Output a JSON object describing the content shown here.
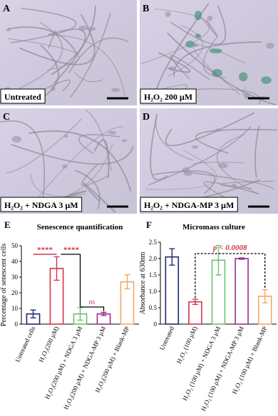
{
  "panels": [
    {
      "letter": "A",
      "caption": "Untreated"
    },
    {
      "letter": "B",
      "caption": "H₂O₂ 200 µM"
    },
    {
      "letter": "C",
      "caption": "H₂O₂ + NDGA 3 µM"
    },
    {
      "letter": "D",
      "caption": "H₂O₂ + NDGA-MP 3 µM"
    }
  ],
  "chart_data": [
    {
      "type": "bar",
      "panel_label": "E",
      "title": "Senescence quantification",
      "y_label": "Percentage of senescent cells",
      "categories": [
        "Untreated cells",
        "H₂O₂(200 µM)",
        "H₂O₂(200 µM) + NDGA 3 µM",
        "H₂O₂(200 µM) + NDGA-MP 3 µM",
        "H₂O₂(200 µM) + Blank-MP"
      ],
      "values": [
        6.5,
        35.5,
        6.5,
        6.5,
        27
      ],
      "errors": [
        2.5,
        7.5,
        4,
        1,
        4.5
      ],
      "colors": [
        "#1f2a6e",
        "#d0344a",
        "#6cc070",
        "#9b2f8c",
        "#f2a866"
      ],
      "ylim": [
        0,
        50
      ],
      "yticks": [
        0,
        10,
        20,
        30,
        40,
        50
      ],
      "annotations": [
        "****",
        "****",
        "ns"
      ]
    },
    {
      "type": "bar",
      "panel_label": "F",
      "title": "Micromass culture",
      "y_label": "Absorbance at 630nm",
      "categories": [
        "Untreated",
        "H₂O₂ (100 µM)",
        "H₂O₂ (100 µM) + NDGA 3 µM",
        "H₂O₂ (100 µM) + NDGA-MP 3 µM",
        "H₂O₂ (100 µM) + Blank-MP"
      ],
      "values": [
        2.05,
        0.68,
        1.95,
        2.0,
        0.85
      ],
      "errors": [
        0.25,
        0.08,
        0.45,
        0.02,
        0.2
      ],
      "colors": [
        "#1f2a6e",
        "#d0344a",
        "#6cc070",
        "#9b2f8c",
        "#f2a866"
      ],
      "ylim": [
        0,
        2.5
      ],
      "yticks": [
        0,
        0.5,
        {
          "value": 1.0,
          "label": "1.0"
        },
        1.5,
        {
          "value": 2.0,
          "label": "2.0"
        },
        2.5
      ],
      "annotations": [
        "p < 0.0008"
      ]
    }
  ]
}
